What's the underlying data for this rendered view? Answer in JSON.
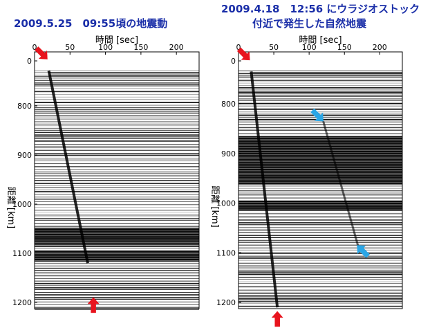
{
  "colors": {
    "title": "#1a2ea8",
    "trace": "#000000",
    "marker_red": "#e8141e",
    "marker_blue": "#2aa6e6"
  },
  "chart_data": [
    {
      "type": "seismic record section",
      "title": "2009.5.25　09:55頃の地震動",
      "title_line2": "",
      "xlabel": "時間 [sec]",
      "ylabel": "距離 [km]",
      "xticks": [
        0,
        50,
        100,
        150,
        200
      ],
      "yticks": [
        0,
        800,
        900,
        1000,
        1100,
        1200
      ],
      "xlim": [
        0,
        232
      ],
      "ylim_upper": [
        0,
        700
      ],
      "ylim_lower": [
        700,
        1210
      ],
      "arrival_line": {
        "t0": 20,
        "d0": 728,
        "t1": 75,
        "d1": 1120
      },
      "markers": [
        {
          "color": "red",
          "t": 18,
          "d": 705,
          "direction": "down-right"
        },
        {
          "color": "red",
          "t": 83,
          "d": 1190,
          "direction": "up"
        }
      ]
    },
    {
      "type": "seismic record section",
      "title": "2009.4.18　12:56 にウラジオストック",
      "title_line2": "付近で発生した自然地震",
      "xlabel": "時間 [sec]",
      "ylabel": "距離 [km]",
      "xticks": [
        0,
        50,
        100,
        150,
        200
      ],
      "yticks": [
        0,
        800,
        900,
        1000,
        1100,
        1200
      ],
      "xlim": [
        0,
        232
      ],
      "ylim_upper": [
        0,
        700
      ],
      "ylim_lower": [
        700,
        1210
      ],
      "arrival_line": {
        "t0": 18,
        "d0": 735,
        "t1": 55,
        "d1": 1210
      },
      "secondary_line": {
        "t0": 120,
        "d0": 835,
        "t1": 172,
        "d1": 1100
      },
      "markers": [
        {
          "color": "red",
          "t": 16,
          "d": 712,
          "direction": "down-right"
        },
        {
          "color": "blue",
          "t": 120,
          "d": 835,
          "direction": "down-right"
        },
        {
          "color": "blue",
          "t": 168,
          "d": 1085,
          "direction": "up-left"
        },
        {
          "color": "red",
          "t": 55,
          "d": 1218,
          "direction": "up"
        }
      ]
    }
  ]
}
